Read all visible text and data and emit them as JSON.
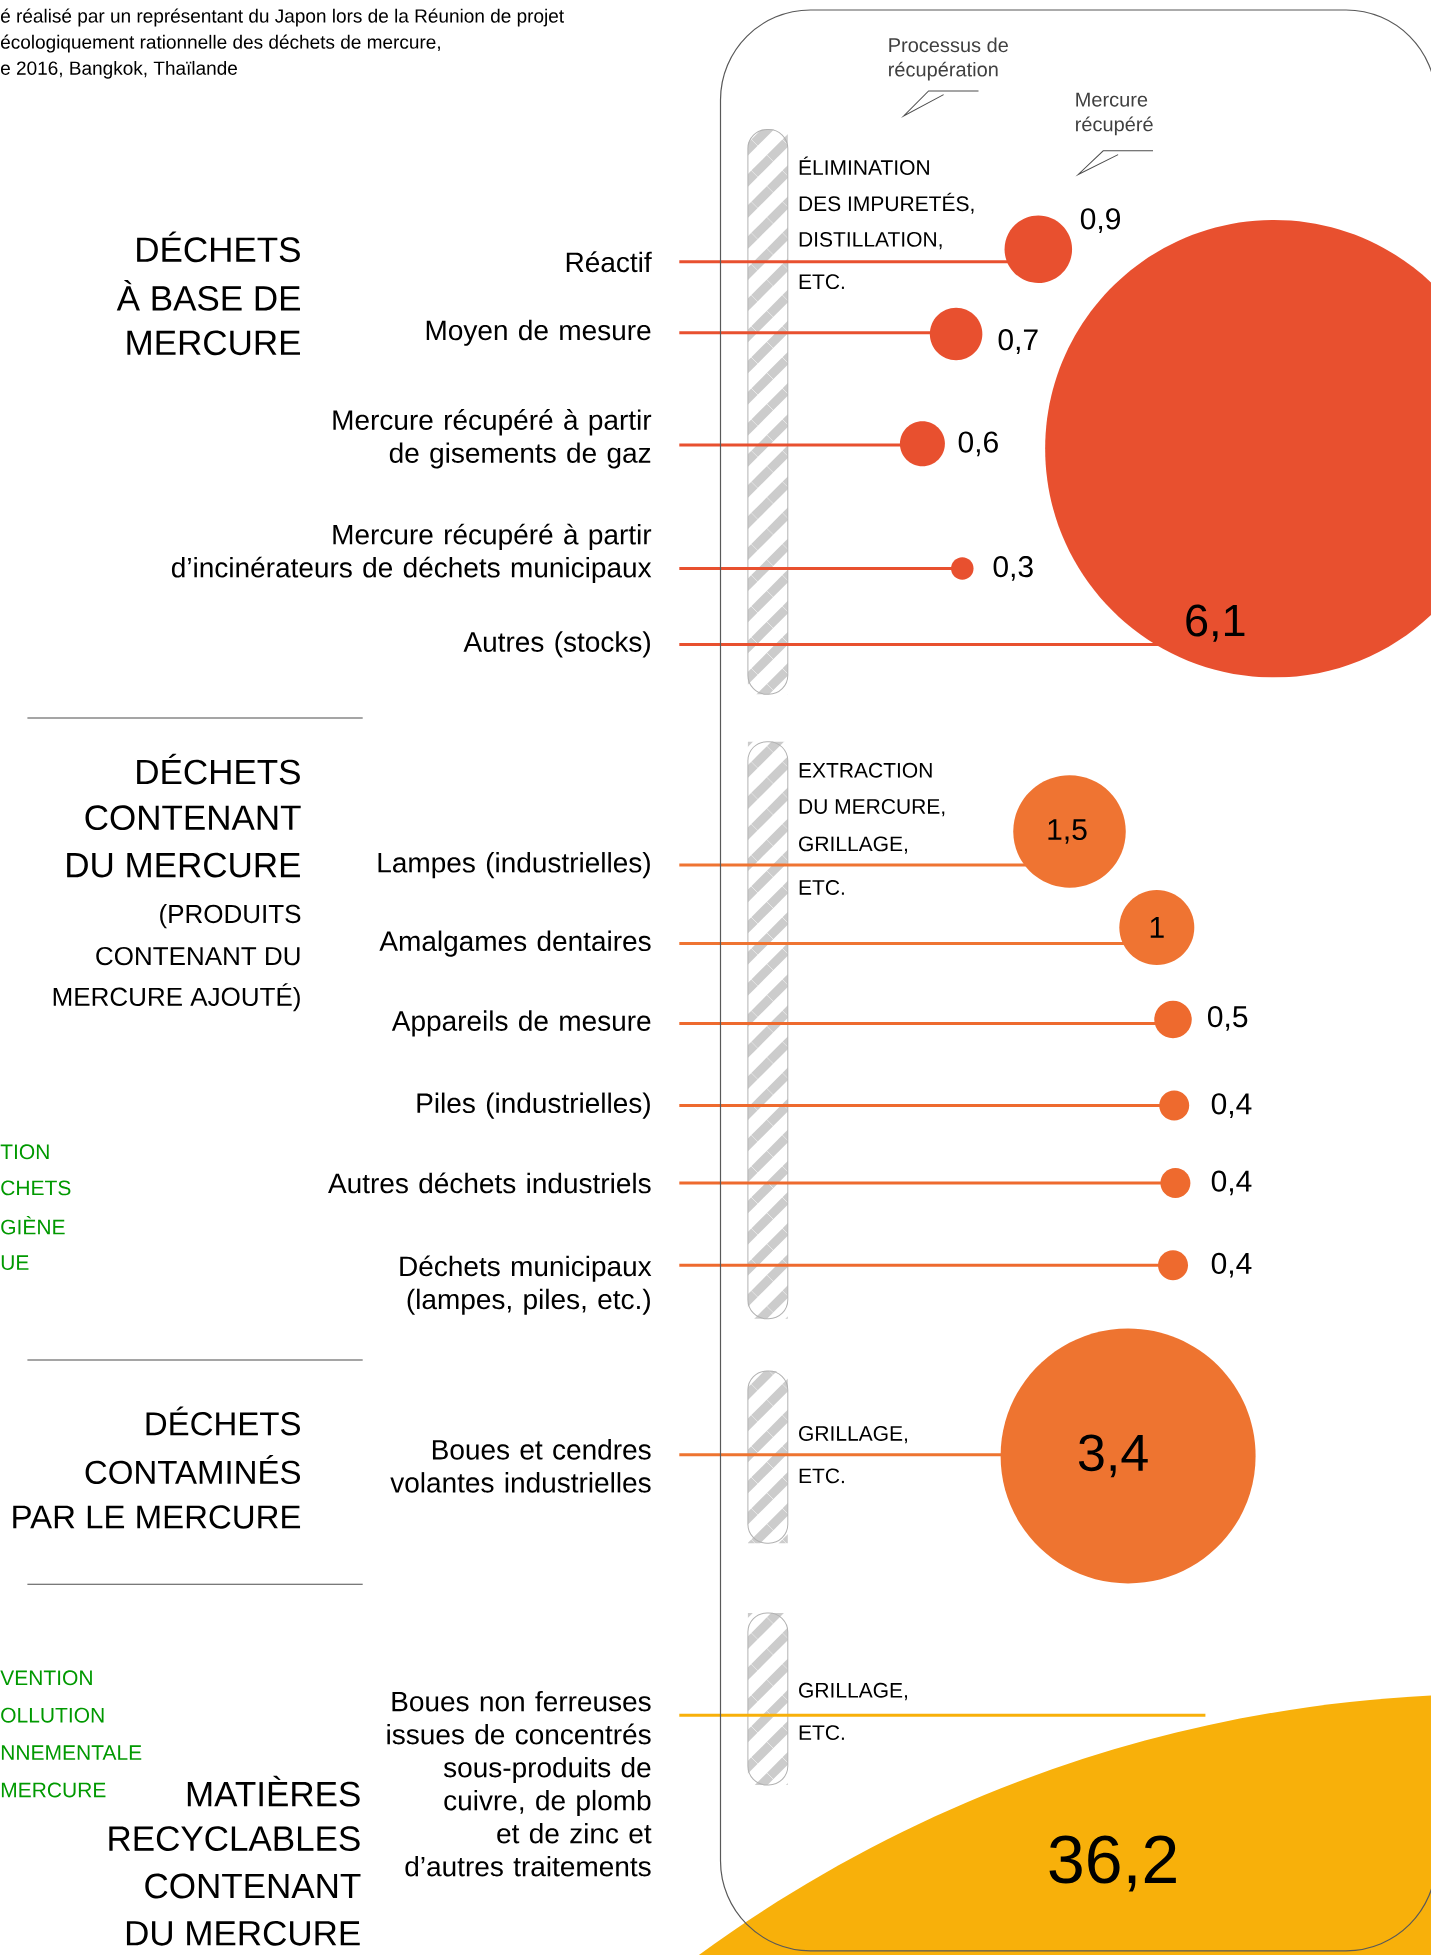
{
  "chart_data": {
    "type": "other",
    "categories": [
      "Réactif",
      "Moyen de mesure",
      "Mercure récupéré à partir de gisements de gaz",
      "Mercure récupéré à partir d’incinérateurs de déchets municipaux",
      "Autres (stocks)",
      "Lampes (industrielles)",
      "Amalgames dentaires",
      "Appareils de mesure",
      "Piles (industrielles)",
      "Autres déchets industriels",
      "Déchets municipaux (lampes, piles, etc.)",
      "Boues et cendres volantes industrielles",
      "Boues non ferreuses issues de concentrés sous-produits de cuivre, de plomb et de zinc et d’autres traitements"
    ],
    "values": [
      0.9,
      0.7,
      0.6,
      0.3,
      6.1,
      1.5,
      1,
      0.5,
      0.4,
      0.4,
      0.4,
      3.4,
      36.2
    ],
    "value_labels": [
      "0,9",
      "0,7",
      "0,6",
      "0,3",
      "6,1",
      "1,5",
      "1",
      "0,5",
      "0,4",
      "0,4",
      "0,4",
      "3,4",
      "36,2"
    ],
    "colors": [
      "#e8502f",
      "#e8502f",
      "#e8502f",
      "#e8502f",
      "#e8502f",
      "#ef7432",
      "#ef7432",
      "#ee6a2e",
      "#ee6a2e",
      "#ee6a2e",
      "#ee6a2e",
      "#ee7430",
      "#f8b00a"
    ],
    "annotations": [
      "é réalisé par un représentant du Japon lors de la Réunion de projet",
      "écologiquement rationnelle des déchets de mercure,",
      "e 2016, Bangkok, Thaïlande",
      "Processus de",
      "récupération",
      "Mercure",
      "récupéré",
      "DÉCHETS",
      "À BASE DE",
      "MERCURE",
      "DÉCHETS",
      "CONTENANT",
      "DU MERCURE",
      "(PRODUITS",
      "CONTENANT DU",
      "MERCURE AJOUTÉ)",
      "DÉCHETS",
      "CONTAMINÉS",
      "PAR LE MERCURE",
      "MATIÈRES",
      "RECYCLABLES",
      "CONTENANT",
      "DU MERCURE",
      "TION",
      "CHETS",
      "GIÈNE",
      "UE",
      "VENTION",
      "OLLUTION",
      "NNEMENTALE",
      "MERCURE",
      "ÉLIMINATION",
      "DES IMPURETÉS,",
      "DISTILLATION,",
      "ETC.",
      "EXTRACTION",
      "DU MERCURE,",
      "GRILLAGE,",
      "ETC.",
      "GRILLAGE,",
      "ETC.",
      "GRILLAGE,",
      "ETC."
    ]
  }
}
